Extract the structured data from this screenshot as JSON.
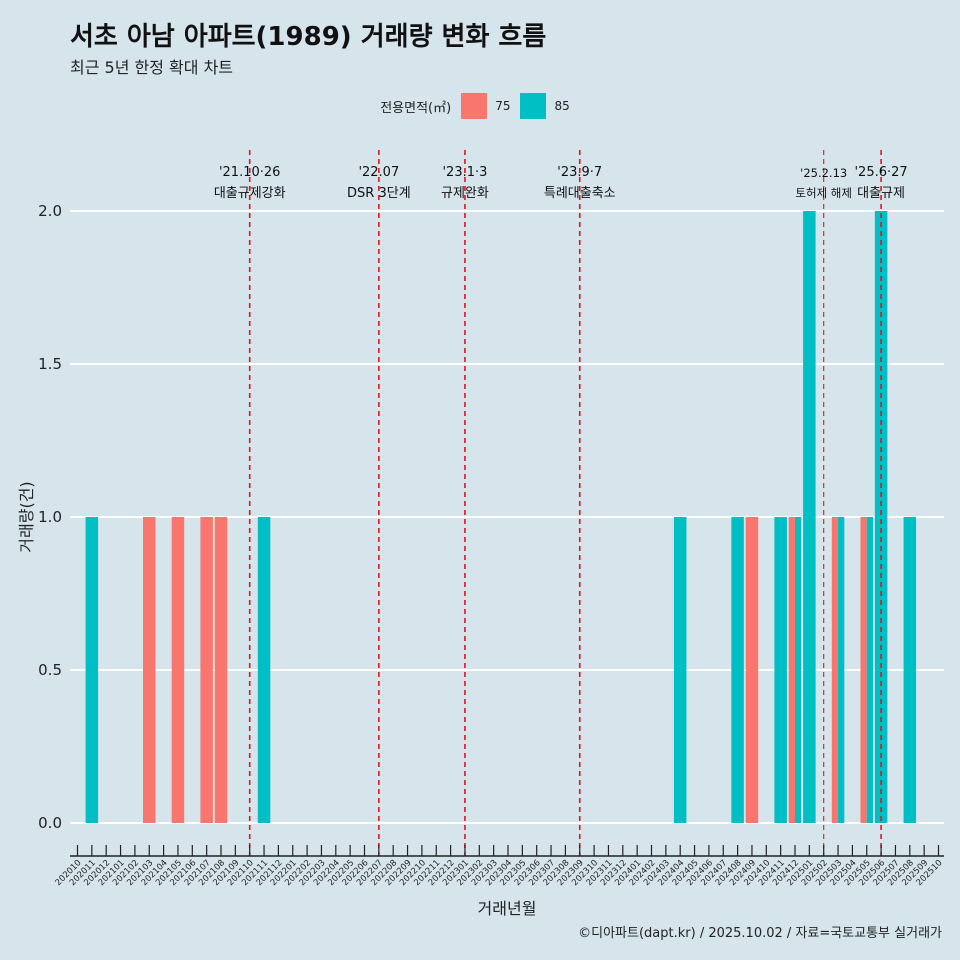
{
  "title": "서초 아남 아파트(1989) 거래량 변화 흐름",
  "subtitle": "최근 5년 한정 확대 차트",
  "footer": "©디아파트(dapt.kr) / 2025.10.02 / 자료=국토교통부 실거래가",
  "legend": {
    "title": "전용면적(㎡)",
    "items": [
      {
        "label": "75",
        "color": "#f8766d"
      },
      {
        "label": "85",
        "color": "#00bfc4"
      }
    ]
  },
  "chart_data": {
    "type": "bar",
    "xlabel": "거래년월",
    "ylabel": "거래량(건)",
    "ylim": [
      0,
      2
    ],
    "yticks": [
      0.0,
      0.5,
      1.0,
      1.5,
      2.0
    ],
    "categories": [
      "202010",
      "202011",
      "202012",
      "202101",
      "202102",
      "202103",
      "202104",
      "202105",
      "202106",
      "202107",
      "202108",
      "202109",
      "202110",
      "202111",
      "202112",
      "202201",
      "202202",
      "202203",
      "202204",
      "202205",
      "202206",
      "202207",
      "202208",
      "202209",
      "202210",
      "202211",
      "202212",
      "202301",
      "202302",
      "202303",
      "202304",
      "202305",
      "202306",
      "202307",
      "202308",
      "202309",
      "202310",
      "202311",
      "202312",
      "202401",
      "202402",
      "202403",
      "202404",
      "202405",
      "202406",
      "202407",
      "202408",
      "202409",
      "202410",
      "202411",
      "202412",
      "202501",
      "202502",
      "202503",
      "202504",
      "202505",
      "202506",
      "202507",
      "202508",
      "202509",
      "202510"
    ],
    "series": [
      {
        "name": "75",
        "color": "#f8766d",
        "values": [
          {
            "x": "202103",
            "y": 1
          },
          {
            "x": "202105",
            "y": 1
          },
          {
            "x": "202107",
            "y": 1
          },
          {
            "x": "202108",
            "y": 1
          },
          {
            "x": "202409",
            "y": 1
          },
          {
            "x": "202412",
            "y": 1
          },
          {
            "x": "202503",
            "y": 1
          },
          {
            "x": "202505",
            "y": 1
          }
        ]
      },
      {
        "name": "85",
        "color": "#00bfc4",
        "values": [
          {
            "x": "202011",
            "y": 1
          },
          {
            "x": "202111",
            "y": 1
          },
          {
            "x": "202404",
            "y": 1
          },
          {
            "x": "202408",
            "y": 1
          },
          {
            "x": "202411",
            "y": 1
          },
          {
            "x": "202412",
            "y": 1
          },
          {
            "x": "202501",
            "y": 2
          },
          {
            "x": "202503",
            "y": 1
          },
          {
            "x": "202505",
            "y": 1
          },
          {
            "x": "202506",
            "y": 2
          },
          {
            "x": "202508",
            "y": 1
          }
        ]
      }
    ],
    "annotations": [
      {
        "x": "202110",
        "date": "'21.10·26",
        "label": "대출규제강화",
        "major": true
      },
      {
        "x": "202207",
        "date": "'22.07",
        "label": "DSR 3단계",
        "major": true
      },
      {
        "x": "202301",
        "date": "'23.1·3",
        "label": "규제완화",
        "major": true
      },
      {
        "x": "202309",
        "date": "'23.9·7",
        "label": "특례대출축소",
        "major": true
      },
      {
        "x": "202502",
        "date": "'25.2.13",
        "label": "토허제 해제",
        "major": false
      },
      {
        "x": "202506",
        "date": "'25.6·27",
        "label": "대출규제",
        "major": true
      }
    ]
  }
}
